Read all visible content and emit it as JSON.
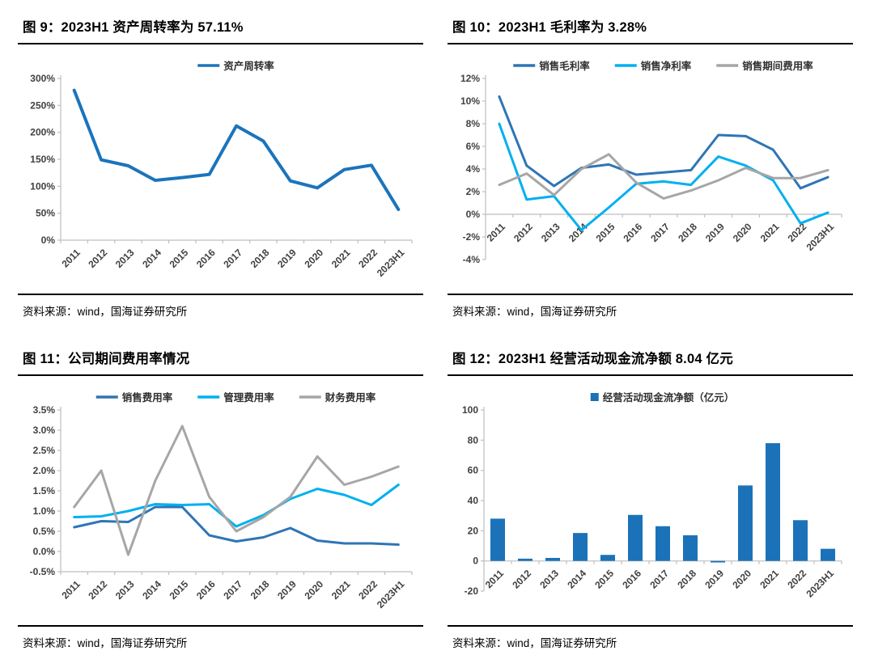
{
  "panels": [
    {
      "title": "图 9：2023H1 资产周转率为 57.11%",
      "source": "资料来源：wind，国海证券研究所",
      "chart_data": {
        "type": "line",
        "categories": [
          "2011",
          "2012",
          "2013",
          "2014",
          "2015",
          "2016",
          "2017",
          "2018",
          "2019",
          "2020",
          "2021",
          "2022",
          "2023H1"
        ],
        "series": [
          {
            "name": "资产周转率",
            "color": "#1B74BC",
            "width": 4,
            "values": [
              278,
              149,
              138,
              111,
              116,
              122,
              212,
              184,
              110,
              97,
              131,
              139,
              57
            ]
          }
        ],
        "title": "2023H1 资产周转率为 57.11%",
        "ylim": [
          0,
          300
        ],
        "yticks": [
          {
            "v": 0,
            "label": "0%"
          },
          {
            "v": 50,
            "label": "50%"
          },
          {
            "v": 100,
            "label": "100%"
          },
          {
            "v": 150,
            "label": "150%"
          },
          {
            "v": 200,
            "label": "200%"
          },
          {
            "v": 250,
            "label": "250%"
          },
          {
            "v": 300,
            "label": "300%"
          }
        ],
        "axis_cross": "bottom",
        "legend_position": "top-center",
        "grid": false,
        "margin_left": 52
      }
    },
    {
      "title": "图 10：2023H1 毛利率为 3.28%",
      "source": "资料来源：wind，国海证券研究所",
      "chart_data": {
        "type": "line",
        "categories": [
          "2011",
          "2012",
          "2013",
          "2014",
          "2015",
          "2016",
          "2017",
          "2018",
          "2019",
          "2020",
          "2021",
          "2022",
          "2023H1"
        ],
        "series": [
          {
            "name": "销售毛利率",
            "color": "#2E75B6",
            "width": 3,
            "values": [
              10.4,
              4.3,
              2.5,
              4.1,
              4.4,
              3.5,
              3.7,
              3.9,
              7.0,
              6.9,
              5.7,
              2.3,
              3.28
            ]
          },
          {
            "name": "销售净利率",
            "color": "#00B0F0",
            "width": 3,
            "values": [
              8.0,
              1.3,
              1.6,
              -1.4,
              0.6,
              2.7,
              2.9,
              2.6,
              5.1,
              4.3,
              3.0,
              -0.8,
              0.15
            ]
          },
          {
            "name": "销售期间费用率",
            "color": "#A6A6A6",
            "width": 3,
            "values": [
              2.6,
              3.6,
              1.7,
              4.0,
              5.3,
              2.8,
              1.4,
              2.1,
              3.0,
              4.1,
              3.2,
              3.2,
              3.9
            ]
          }
        ],
        "title": "2023H1 毛利率为 3.28%",
        "ylim": [
          -4,
          12
        ],
        "yticks": [
          {
            "v": -4,
            "label": "-4%"
          },
          {
            "v": -2,
            "label": "-2%"
          },
          {
            "v": 0,
            "label": "0%"
          },
          {
            "v": 2,
            "label": "2%"
          },
          {
            "v": 4,
            "label": "4%"
          },
          {
            "v": 6,
            "label": "6%"
          },
          {
            "v": 8,
            "label": "8%"
          },
          {
            "v": 10,
            "label": "10%"
          },
          {
            "v": 12,
            "label": "12%"
          }
        ],
        "axis_cross": "zero",
        "legend_position": "top-center",
        "grid": false,
        "margin_left": 46
      }
    },
    {
      "title": "图 11：公司期间费用率情况",
      "source": "资料来源：wind，国海证券研究所",
      "chart_data": {
        "type": "line",
        "categories": [
          "2011",
          "2012",
          "2013",
          "2014",
          "2015",
          "2016",
          "2017",
          "2018",
          "2019",
          "2020",
          "2021",
          "2022",
          "2023H1"
        ],
        "series": [
          {
            "name": "销售费用率",
            "color": "#2E75B6",
            "width": 3,
            "values": [
              0.6,
              0.75,
              0.73,
              1.1,
              1.1,
              0.4,
              0.25,
              0.35,
              0.58,
              0.27,
              0.2,
              0.2,
              0.17
            ]
          },
          {
            "name": "管理费用率",
            "color": "#00B0F0",
            "width": 3,
            "values": [
              0.85,
              0.87,
              1.0,
              1.17,
              1.15,
              1.17,
              0.62,
              0.9,
              1.3,
              1.55,
              1.4,
              1.15,
              1.65
            ]
          },
          {
            "name": "财务费用率",
            "color": "#A6A6A6",
            "width": 3,
            "values": [
              1.1,
              2.0,
              -0.08,
              1.75,
              3.1,
              1.35,
              0.5,
              0.85,
              1.35,
              2.35,
              1.65,
              1.85,
              2.1
            ]
          }
        ],
        "title": "公司期间费用率情况",
        "ylim": [
          -0.5,
          3.5
        ],
        "yticks": [
          {
            "v": -0.5,
            "label": "-0.5%"
          },
          {
            "v": 0,
            "label": "0.0%"
          },
          {
            "v": 0.5,
            "label": "0.5%"
          },
          {
            "v": 1,
            "label": "1.0%"
          },
          {
            "v": 1.5,
            "label": "1.5%"
          },
          {
            "v": 2,
            "label": "2.0%"
          },
          {
            "v": 2.5,
            "label": "2.5%"
          },
          {
            "v": 3,
            "label": "3.0%"
          },
          {
            "v": 3.5,
            "label": "3.5%"
          }
        ],
        "axis_cross": "bottom",
        "legend_position": "top-center",
        "grid": false,
        "margin_left": 52
      }
    },
    {
      "title": "图 12：2023H1 经营活动现金流净额 8.04 亿元",
      "source": "资料来源：wind，国海证券研究所",
      "chart_data": {
        "type": "bar",
        "categories": [
          "2011",
          "2012",
          "2013",
          "2014",
          "2015",
          "2016",
          "2017",
          "2018",
          "2019",
          "2020",
          "2021",
          "2022",
          "2023H1"
        ],
        "series": [
          {
            "name": "经营活动现金流净额（亿元）",
            "color": "#1B72B8",
            "values": [
              28,
              1.5,
              2,
              18.5,
              4,
              30.5,
              23,
              17,
              -1,
              50,
              78,
              27,
              8.04
            ]
          }
        ],
        "title": "2023H1 经营活动现金流净额 8.04 亿元",
        "ylim": [
          -20,
          100
        ],
        "yticks": [
          {
            "v": -20,
            "label": "-20"
          },
          {
            "v": 0,
            "label": "0"
          },
          {
            "v": 20,
            "label": "20"
          },
          {
            "v": 40,
            "label": "40"
          },
          {
            "v": 60,
            "label": "60"
          },
          {
            "v": 80,
            "label": "80"
          },
          {
            "v": 100,
            "label": "100"
          }
        ],
        "axis_cross": "zero",
        "legend_position": "top-center",
        "grid": false,
        "margin_left": 44
      }
    }
  ]
}
